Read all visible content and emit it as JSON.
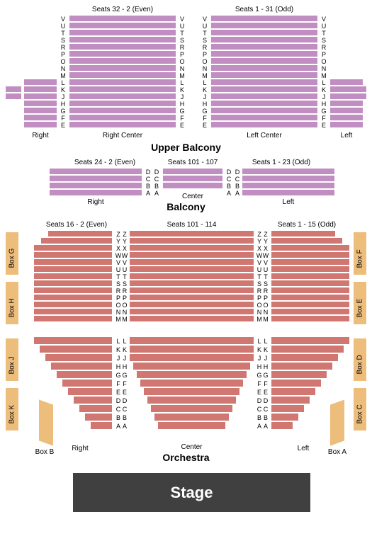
{
  "colors": {
    "balcony_seat": "#c18ec2",
    "orchestra_seat": "#d07772",
    "box_seat": "#edbd7c",
    "stage_bg": "#404040",
    "stage_text": "#ffffff",
    "background": "#ffffff"
  },
  "upper_balcony": {
    "title": "Upper Balcony",
    "sections": {
      "right_center": {
        "label": "Right Center",
        "seat_label": "Seats 32 - 2 (Even)"
      },
      "left_center": {
        "label": "Left Center",
        "seat_label": "Seats 1 - 31 (Odd)"
      },
      "right_side": {
        "label": "Right"
      },
      "left_side": {
        "label": "Left"
      }
    },
    "rows": [
      "V",
      "U",
      "T",
      "S",
      "R",
      "P",
      "O",
      "N",
      "M",
      "L",
      "K",
      "J",
      "H",
      "G",
      "F",
      "E"
    ]
  },
  "balcony": {
    "title": "Balcony",
    "sections": {
      "right": {
        "label": "Right",
        "seat_label": "Seats 24 - 2 (Even)"
      },
      "center": {
        "label": "Center",
        "seat_label": "Seats 101 - 107"
      },
      "left": {
        "label": "Left",
        "seat_label": "Seats 1 - 23 (Odd)"
      }
    },
    "rows": [
      "D",
      "C",
      "B",
      "A"
    ]
  },
  "orchestra": {
    "title": "Orchestra",
    "sections": {
      "right": {
        "label": "Right",
        "seat_label": "Seats 16 - 2 (Even)"
      },
      "center": {
        "label": "Center",
        "seat_label": "Seats 101 - 114"
      },
      "left": {
        "label": "Left",
        "seat_label": "Seats 1 - 15 (Odd)"
      }
    },
    "upper_rows": [
      "Z",
      "Y",
      "X",
      "W",
      "V",
      "U",
      "T",
      "S",
      "R",
      "P",
      "O",
      "N",
      "M"
    ],
    "lower_rows": [
      "L",
      "K",
      "J",
      "H",
      "G",
      "F",
      "E",
      "D",
      "C",
      "B",
      "A"
    ]
  },
  "boxes": {
    "left_side": [
      "Box G",
      "Box H",
      "Box J",
      "Box K"
    ],
    "right_side": [
      "Box F",
      "Box E",
      "Box D",
      "Box C"
    ],
    "stage_left": "Box B",
    "stage_right": "Box A"
  },
  "stage": {
    "label": "Stage"
  }
}
